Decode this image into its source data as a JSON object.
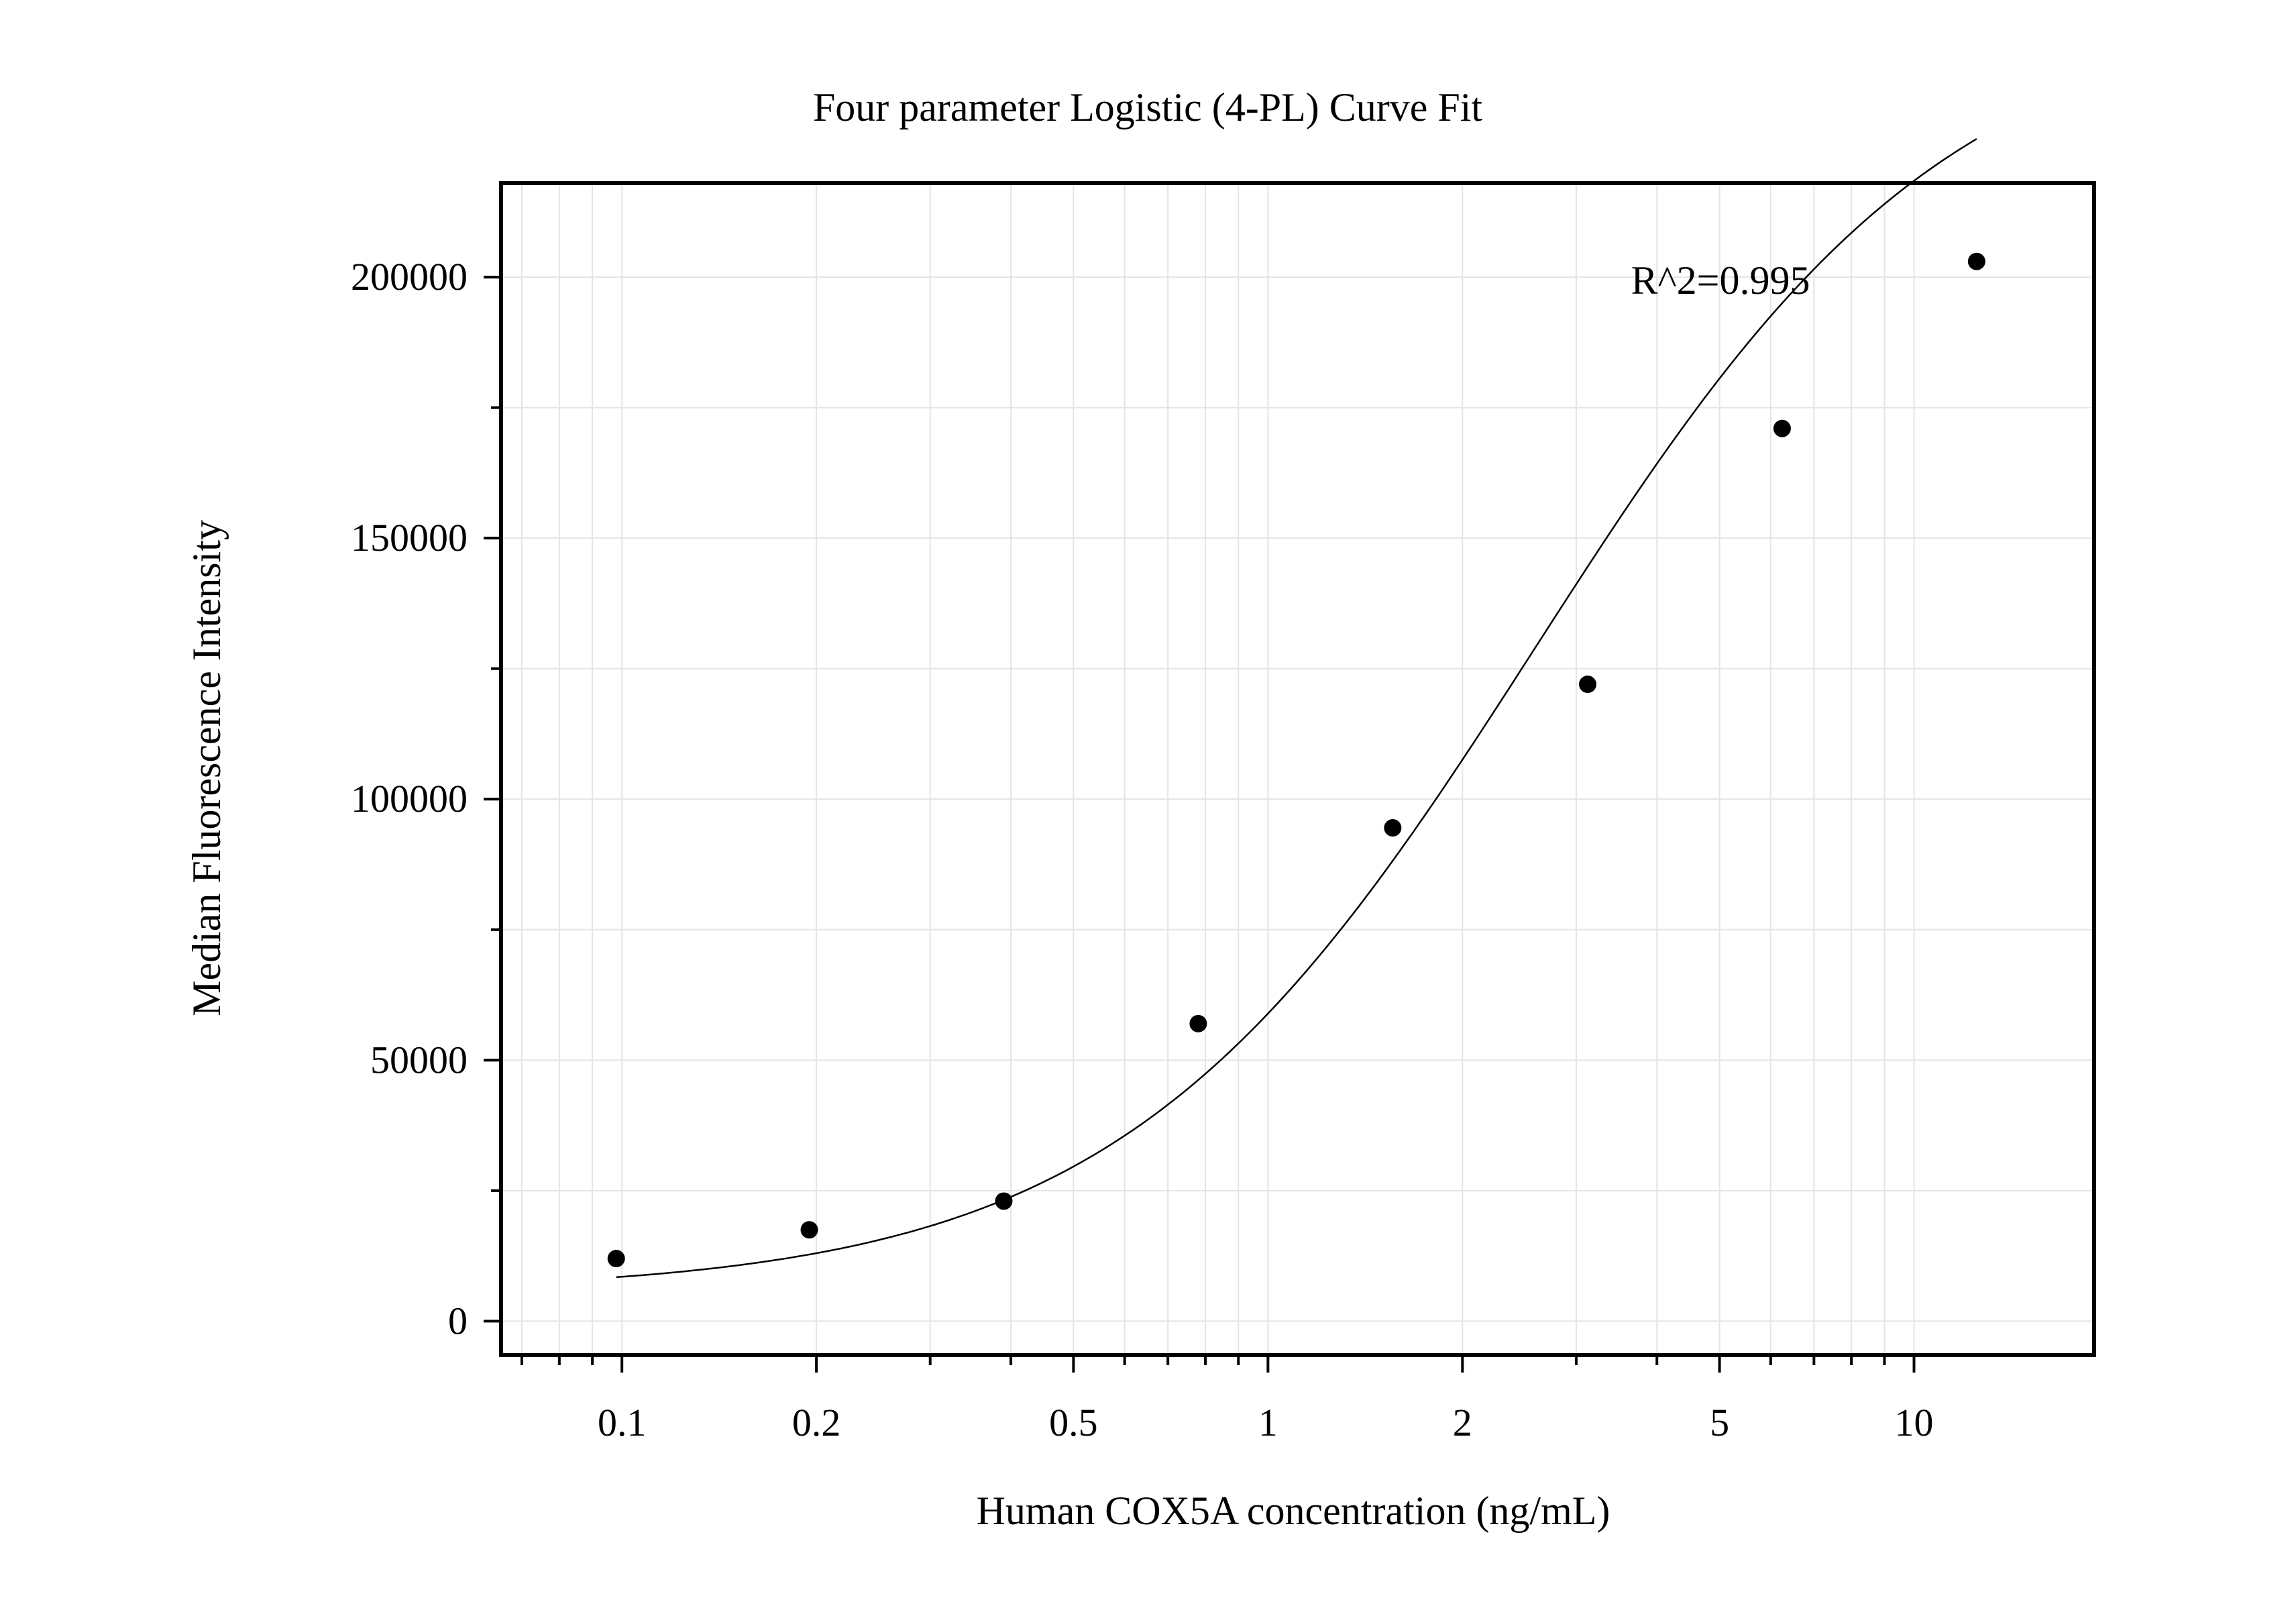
{
  "chart_data": {
    "type": "scatter",
    "title": "Four parameter Logistic (4-PL) Curve Fit",
    "xlabel": "Human COX5A concentration (ng/mL)",
    "ylabel": "Median Fluorescence Intensity",
    "x_scale": "log",
    "xlim": [
      0.065,
      19
    ],
    "ylim": [
      -6500,
      218000
    ],
    "x_ticks": [
      0.1,
      0.2,
      0.5,
      1,
      2,
      5,
      10
    ],
    "x_tick_labels": [
      "0.1",
      "0.2",
      "0.5",
      "1",
      "2",
      "5",
      "10"
    ],
    "y_ticks": [
      0,
      50000,
      100000,
      150000,
      200000
    ],
    "y_tick_labels": [
      "0",
      "50000",
      "100000",
      "150000",
      "200000"
    ],
    "y_minor_ticks": [
      25000,
      75000,
      125000,
      175000
    ],
    "grid": true,
    "annotation": "R^2=0.995",
    "x": [
      0.098,
      0.195,
      0.39,
      0.78,
      1.56,
      3.125,
      6.25,
      12.5
    ],
    "y": [
      12000,
      17500,
      23000,
      57000,
      94500,
      122000,
      171000,
      203000
    ],
    "fit": {
      "model": "4-PL",
      "x_range": [
        0.098,
        12.5
      ],
      "A": 5500,
      "B": 1.35,
      "C": 2.6,
      "D": 253000
    },
    "colors": {
      "points": "#000000",
      "curve": "#000000",
      "grid": "#e4e4e4",
      "frame": "#000000"
    }
  }
}
